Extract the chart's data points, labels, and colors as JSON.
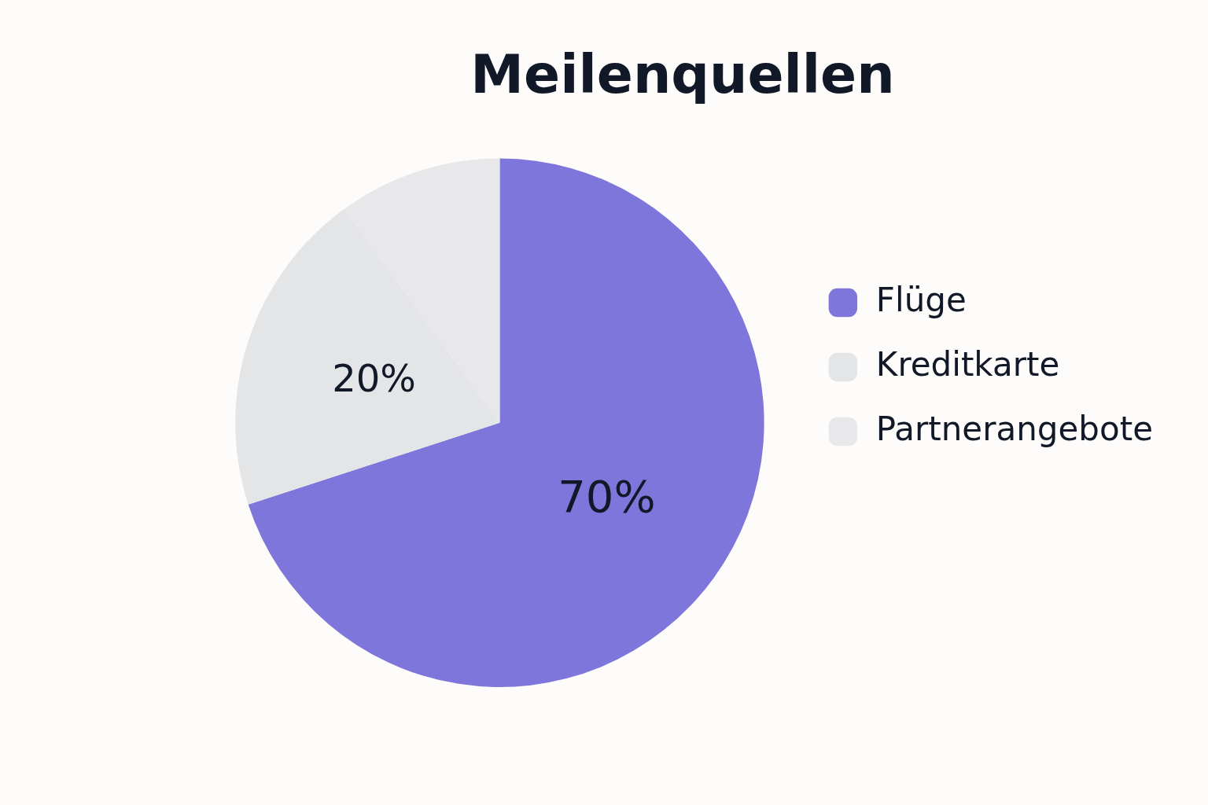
{
  "chart_data": {
    "type": "pie",
    "title": "Meilenquellen",
    "categories": [
      "Flüge",
      "Kreditkarte",
      "Partnerangebote"
    ],
    "values": [
      70,
      20,
      10
    ],
    "colors": [
      "#7e76db",
      "#e4e5e7",
      "#e8e8ea"
    ],
    "value_labels": [
      "70%",
      "20%",
      null
    ],
    "legend": "right"
  }
}
